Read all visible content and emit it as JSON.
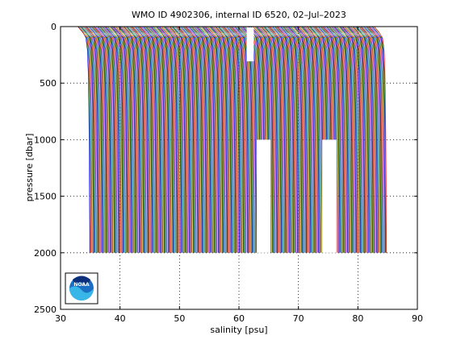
{
  "chart_data": {
    "type": "line",
    "title": "WMO ID 4902306, internal ID 6520, 02–Jul–2023",
    "xlabel": "salinity [psu]",
    "ylabel": "pressure [dbar]",
    "xlim": [
      30,
      90
    ],
    "ylim": [
      0,
      2500
    ],
    "y_reversed": true,
    "x_ticks": [
      30,
      40,
      50,
      60,
      70,
      80,
      90
    ],
    "y_ticks": [
      0,
      500,
      1000,
      1500,
      2000,
      2500
    ],
    "grid": "dotted",
    "profile_offset_psu": 0.1,
    "profile_count": 500,
    "first_profile_deep_salinity": 34.8,
    "surface_salinity_first": 33.0,
    "max_pressure": 2000,
    "color_cycle": [
      "#0000ff",
      "#008000",
      "#ff0000",
      "#00bfbf",
      "#bf00bf",
      "#bfbf00",
      "#404040"
    ],
    "gaps": [
      {
        "x_range": [
          63.0,
          65.3
        ],
        "pressure_range": [
          1000,
          2000
        ]
      },
      {
        "x_range": [
          74.0,
          76.4
        ],
        "pressure_range": [
          1000,
          2000
        ]
      },
      {
        "x_range": [
          61.3,
          62.5
        ],
        "pressure_range": [
          0,
          300
        ]
      }
    ],
    "logo": {
      "text": "NOAA"
    }
  }
}
